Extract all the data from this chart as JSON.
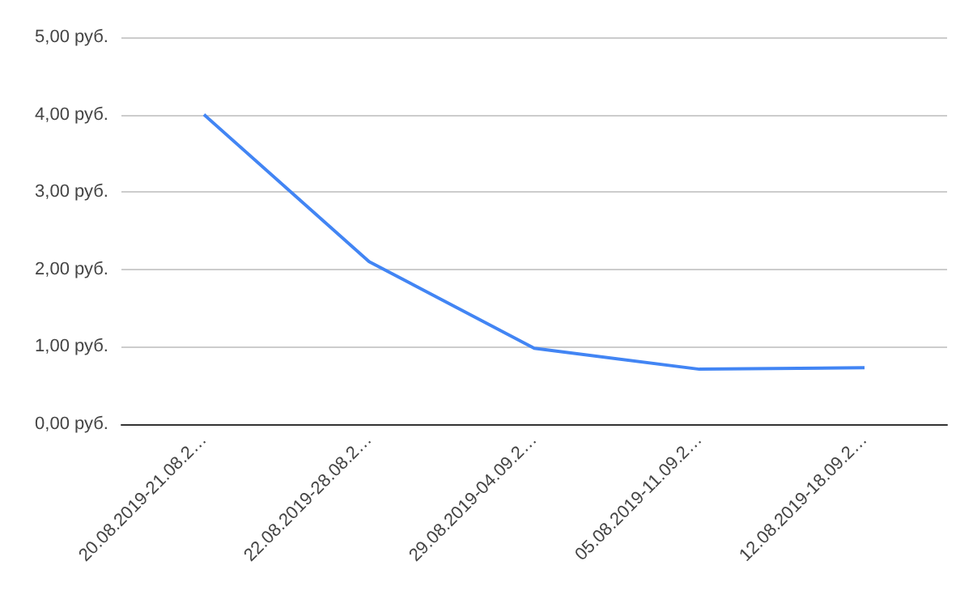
{
  "chart_data": {
    "type": "line",
    "categories": [
      "20.08.2019-21.08.2…",
      "22.08.2019-28.08.2…",
      "29.08.2019-04.09.2…",
      "05.08.2019-11.09.2…",
      "12.08.2019-18.09.2…"
    ],
    "series": [
      {
        "color": "#4285f4",
        "values": [
          4.0,
          2.1,
          0.98,
          0.71,
          0.73
        ]
      }
    ],
    "ylim": [
      0,
      5
    ],
    "yticks": [
      {
        "value": 0,
        "label": "0,00 руб."
      },
      {
        "value": 1,
        "label": "1,00 руб."
      },
      {
        "value": 2,
        "label": "2,00 руб."
      },
      {
        "value": 3,
        "label": "3,00 руб."
      },
      {
        "value": 4,
        "label": "4,00 руб."
      },
      {
        "value": 5,
        "label": "5,00 руб."
      }
    ],
    "grid": "y",
    "marker": "none",
    "line_style": "solid"
  }
}
